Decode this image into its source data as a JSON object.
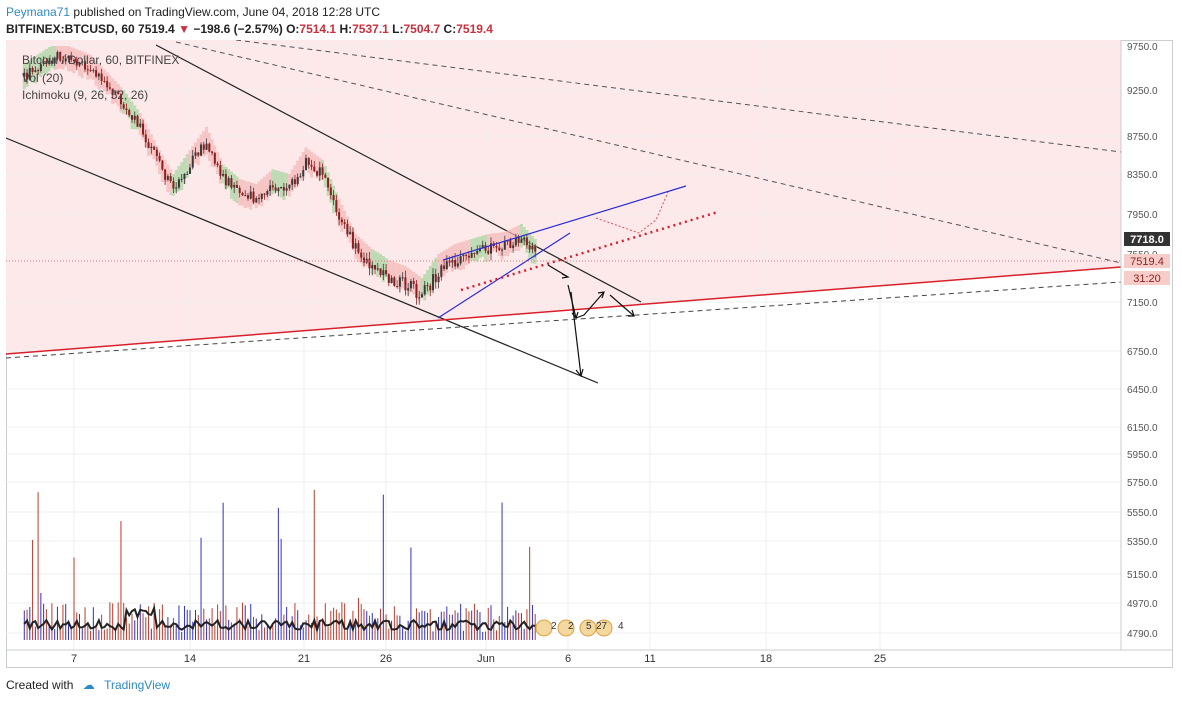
{
  "header": {
    "user": "Peymana71",
    "published": "published on TradingView.com, June 04, 2018 12:28 UTC"
  },
  "symbol_bar": {
    "symbol": "BITFINEX:BTCUSD, 60",
    "last": "7519.4",
    "arrow": "▼",
    "change": "−198.6 (−2.57%)",
    "o_label": "O:",
    "o": "7514.1",
    "h_label": "H:",
    "h": "7537.1",
    "l_label": "L:",
    "l": "7504.7",
    "c_label": "C:",
    "c": "7519.4"
  },
  "legend": {
    "line1": "Bitcoin / Dollar, 60, BITFINEX",
    "line2": "Vol (20)",
    "line3": "Ichimoku (9, 26, 52, 26)"
  },
  "footer": {
    "created_with": "Created with",
    "brand": "TradingView"
  },
  "colors": {
    "candle_up": "#3a3a3a",
    "candle_down": "#8b1e1e",
    "cloud_bull": "#a7d4a0",
    "cloud_bear": "#f4b6b6",
    "shade": "#fde9ea",
    "trend_red": "#d9202a",
    "wedge_blue": "#2b2bd6",
    "vol_up": "#3030c8",
    "vol_down": "#c0392b"
  },
  "chart_data": {
    "type": "candlestick",
    "title": "Bitcoin / Dollar, 60, BITFINEX",
    "x_ticks": [
      "7",
      "14",
      "21",
      "26",
      "Jun",
      "6",
      "11",
      "18",
      "25"
    ],
    "y_ticks": [
      "9750.0",
      "9250.0",
      "8750.0",
      "8350.0",
      "7950.0",
      "7550.0",
      "7150.0",
      "6750.0",
      "6450.0",
      "6150.0",
      "5950.0",
      "5750.0",
      "5550.0",
      "5350.0",
      "5150.0",
      "4970.0",
      "4790.0"
    ],
    "price_labels": {
      "high_marker": "7718.0",
      "last": "7519.4",
      "countdown": "31:20"
    },
    "price_path": [
      {
        "day": 4,
        "close": 9400
      },
      {
        "day": 6,
        "close": 9650
      },
      {
        "day": 8,
        "close": 9500
      },
      {
        "day": 10,
        "close": 9100
      },
      {
        "day": 11,
        "close": 8850
      },
      {
        "day": 12,
        "close": 8500
      },
      {
        "day": 13,
        "close": 8200
      },
      {
        "day": 14,
        "close": 8450
      },
      {
        "day": 15,
        "close": 8700
      },
      {
        "day": 16,
        "close": 8300
      },
      {
        "day": 17,
        "close": 8150
      },
      {
        "day": 18,
        "close": 8100
      },
      {
        "day": 19,
        "close": 8250
      },
      {
        "day": 20,
        "close": 8200
      },
      {
        "day": 21,
        "close": 8480
      },
      {
        "day": 22,
        "close": 8350
      },
      {
        "day": 23,
        "close": 7950
      },
      {
        "day": 24,
        "close": 7600
      },
      {
        "day": 25,
        "close": 7450
      },
      {
        "day": 26,
        "close": 7350
      },
      {
        "day": 27,
        "close": 7300
      },
      {
        "day": 28,
        "close": 7200
      },
      {
        "day": 29,
        "close": 7400
      },
      {
        "day": 30,
        "close": 7500
      },
      {
        "day": 31,
        "close": 7550
      },
      {
        "day": 32,
        "close": 7600
      },
      {
        "day": 33,
        "close": 7620
      },
      {
        "day": 34,
        "close": 7700
      },
      {
        "day": 35,
        "close": 7519.4
      }
    ],
    "volume_axis_max": 5750
  }
}
